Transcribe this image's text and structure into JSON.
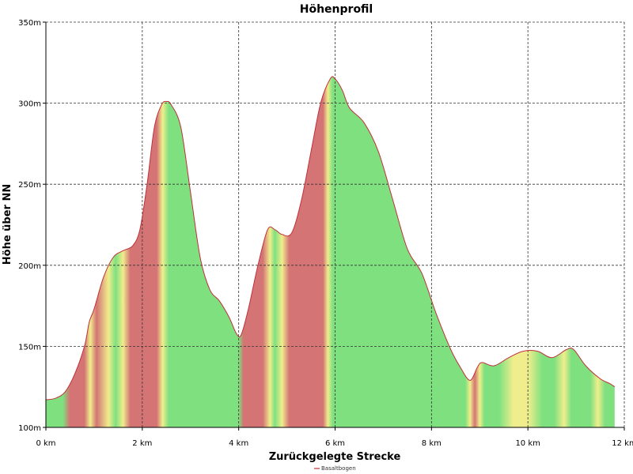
{
  "chart_data": {
    "type": "area",
    "title": "Höhenprofil",
    "xlabel": "Zurückgelegte Strecke",
    "ylabel": "Höhe über NN",
    "xlim": [
      0,
      12
    ],
    "ylim": [
      100,
      350
    ],
    "x_ticks": [
      0,
      2,
      4,
      6,
      8,
      10,
      12
    ],
    "x_tick_labels": [
      "0 km",
      "2 km",
      "4 km",
      "6 km",
      "8 km",
      "10 km",
      "12 km"
    ],
    "y_ticks": [
      100,
      150,
      200,
      250,
      300,
      350
    ],
    "y_tick_labels": [
      "100m",
      "150m",
      "200m",
      "250m",
      "300m",
      "350m"
    ],
    "grid": true,
    "legend_position": "bottom-center",
    "series": [
      {
        "name": "Basaltbogen",
        "line_color": "#c0303a",
        "points": [
          [
            0.0,
            117
          ],
          [
            0.2,
            118
          ],
          [
            0.4,
            122
          ],
          [
            0.6,
            133
          ],
          [
            0.8,
            150
          ],
          [
            0.9,
            165
          ],
          [
            1.0,
            173
          ],
          [
            1.2,
            193
          ],
          [
            1.4,
            205
          ],
          [
            1.6,
            209
          ],
          [
            1.8,
            212
          ],
          [
            1.95,
            222
          ],
          [
            2.1,
            250
          ],
          [
            2.25,
            285
          ],
          [
            2.4,
            299
          ],
          [
            2.5,
            301
          ],
          [
            2.6,
            299
          ],
          [
            2.8,
            285
          ],
          [
            3.0,
            245
          ],
          [
            3.2,
            205
          ],
          [
            3.4,
            185
          ],
          [
            3.6,
            178
          ],
          [
            3.8,
            168
          ],
          [
            3.95,
            158
          ],
          [
            4.05,
            157
          ],
          [
            4.2,
            173
          ],
          [
            4.4,
            200
          ],
          [
            4.6,
            222
          ],
          [
            4.75,
            222
          ],
          [
            4.9,
            219
          ],
          [
            5.1,
            220
          ],
          [
            5.3,
            240
          ],
          [
            5.5,
            270
          ],
          [
            5.7,
            300
          ],
          [
            5.9,
            315
          ],
          [
            6.0,
            315
          ],
          [
            6.15,
            308
          ],
          [
            6.3,
            297
          ],
          [
            6.6,
            288
          ],
          [
            6.9,
            270
          ],
          [
            7.2,
            240
          ],
          [
            7.5,
            210
          ],
          [
            7.8,
            195
          ],
          [
            8.1,
            170
          ],
          [
            8.4,
            148
          ],
          [
            8.6,
            137
          ],
          [
            8.8,
            129
          ],
          [
            8.95,
            137
          ],
          [
            9.05,
            140
          ],
          [
            9.3,
            138
          ],
          [
            9.6,
            143
          ],
          [
            9.9,
            147
          ],
          [
            10.2,
            147
          ],
          [
            10.5,
            143
          ],
          [
            10.8,
            148
          ],
          [
            10.95,
            148
          ],
          [
            11.2,
            138
          ],
          [
            11.5,
            130
          ],
          [
            11.7,
            127
          ],
          [
            11.8,
            125
          ]
        ],
        "fill_bands": [
          [
            0.0,
            "g"
          ],
          [
            0.35,
            "g"
          ],
          [
            0.5,
            "r"
          ],
          [
            0.8,
            "r"
          ],
          [
            0.92,
            "y"
          ],
          [
            1.05,
            "r"
          ],
          [
            1.3,
            "y"
          ],
          [
            1.45,
            "g"
          ],
          [
            1.6,
            "y"
          ],
          [
            1.75,
            "r"
          ],
          [
            2.3,
            "r"
          ],
          [
            2.42,
            "y"
          ],
          [
            2.55,
            "g"
          ],
          [
            4.0,
            "g"
          ],
          [
            4.1,
            "r"
          ],
          [
            4.5,
            "r"
          ],
          [
            4.65,
            "y"
          ],
          [
            4.75,
            "g"
          ],
          [
            4.9,
            "y"
          ],
          [
            5.05,
            "r"
          ],
          [
            5.75,
            "r"
          ],
          [
            5.85,
            "y"
          ],
          [
            5.95,
            "g"
          ],
          [
            8.7,
            "g"
          ],
          [
            8.8,
            "y"
          ],
          [
            8.9,
            "r"
          ],
          [
            9.0,
            "y"
          ],
          [
            9.1,
            "g"
          ],
          [
            9.4,
            "g"
          ],
          [
            9.7,
            "y"
          ],
          [
            10.0,
            "y"
          ],
          [
            10.3,
            "g"
          ],
          [
            10.55,
            "g"
          ],
          [
            10.75,
            "y"
          ],
          [
            10.9,
            "g"
          ],
          [
            11.3,
            "g"
          ],
          [
            11.45,
            "y"
          ],
          [
            11.6,
            "g"
          ],
          [
            11.8,
            "g"
          ]
        ],
        "band_colors": {
          "g": "#7fe07f",
          "y": "#f0ee8c",
          "r": "#d47474"
        }
      }
    ]
  }
}
